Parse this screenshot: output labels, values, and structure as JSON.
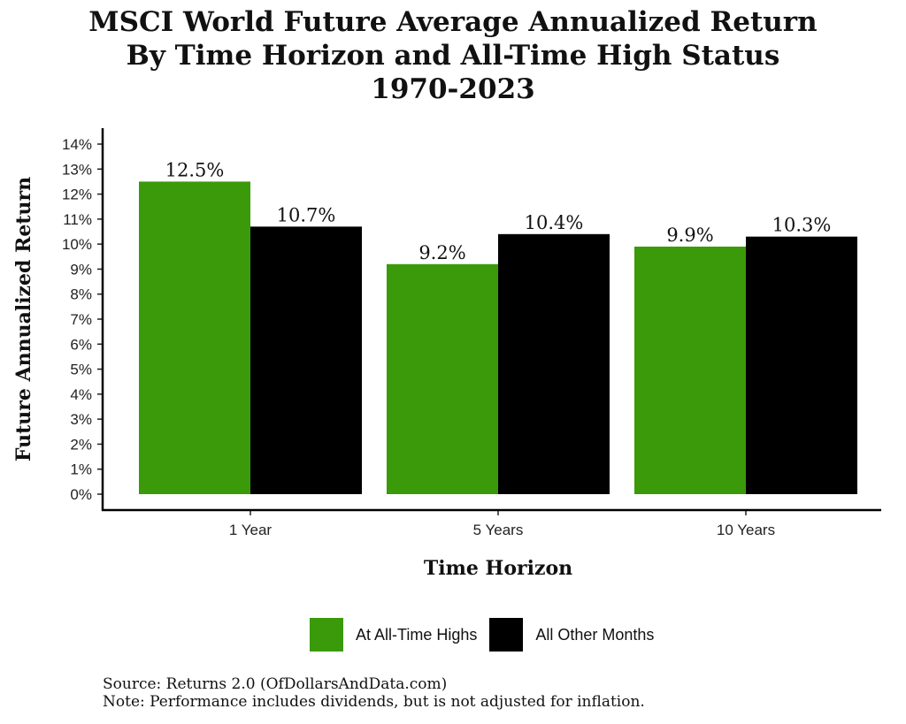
{
  "chart_data": {
    "type": "bar",
    "title_lines": [
      "MSCI World Future Average Annualized Return",
      "By Time Horizon and All-Time High Status",
      "1970-2023"
    ],
    "xlabel": "Time Horizon",
    "ylabel": "Future Annualized Return",
    "categories": [
      "1 Year",
      "5 Years",
      "10 Years"
    ],
    "series": [
      {
        "name": "At All-Time Highs",
        "color": "#3a9a0a",
        "values": [
          12.5,
          9.2,
          9.9
        ],
        "labels": [
          "12.5%",
          "9.2%",
          "9.9%"
        ]
      },
      {
        "name": "All Other Months",
        "color": "#000000",
        "values": [
          10.7,
          10.4,
          10.3
        ],
        "labels": [
          "10.7%",
          "10.4%",
          "10.3%"
        ]
      }
    ],
    "ylim": [
      0,
      14
    ],
    "yticks": [
      "0%",
      "1%",
      "2%",
      "3%",
      "4%",
      "5%",
      "6%",
      "7%",
      "8%",
      "9%",
      "10%",
      "11%",
      "12%",
      "13%",
      "14%"
    ],
    "legend_position": "bottom",
    "grid": false
  },
  "footer": {
    "source": "Source:  Returns 2.0 (OfDollarsAndData.com)",
    "note": "Note: Performance includes dividends, but is not adjusted for inflation."
  }
}
